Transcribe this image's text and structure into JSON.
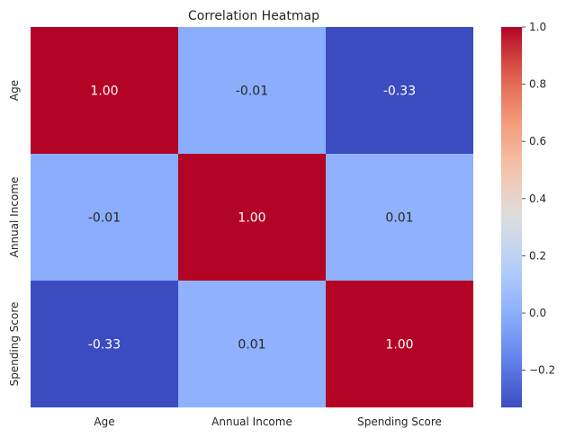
{
  "chart_data": {
    "type": "heatmap",
    "title": "Correlation Heatmap",
    "x_labels": [
      "Age",
      "Annual Income",
      "Spending Score"
    ],
    "y_labels": [
      "Age",
      "Annual Income",
      "Spending Score"
    ],
    "values": [
      [
        1.0,
        -0.01,
        -0.33
      ],
      [
        -0.01,
        1.0,
        0.01
      ],
      [
        -0.33,
        0.01,
        1.0
      ]
    ],
    "annotations": [
      [
        "1.00",
        "-0.01",
        "-0.33"
      ],
      [
        "-0.01",
        "1.00",
        "0.01"
      ],
      [
        "-0.33",
        "0.01",
        "1.00"
      ]
    ],
    "colormap": "coolwarm",
    "colorbar": {
      "range": [
        -0.33,
        1.0
      ],
      "ticks": [
        -0.2,
        0.0,
        0.2,
        0.4,
        0.6,
        0.8,
        1.0
      ],
      "tick_labels": [
        "−0.2",
        "0.0",
        "0.2",
        "0.4",
        "0.6",
        "0.8",
        "1.0"
      ]
    },
    "grid": false
  }
}
